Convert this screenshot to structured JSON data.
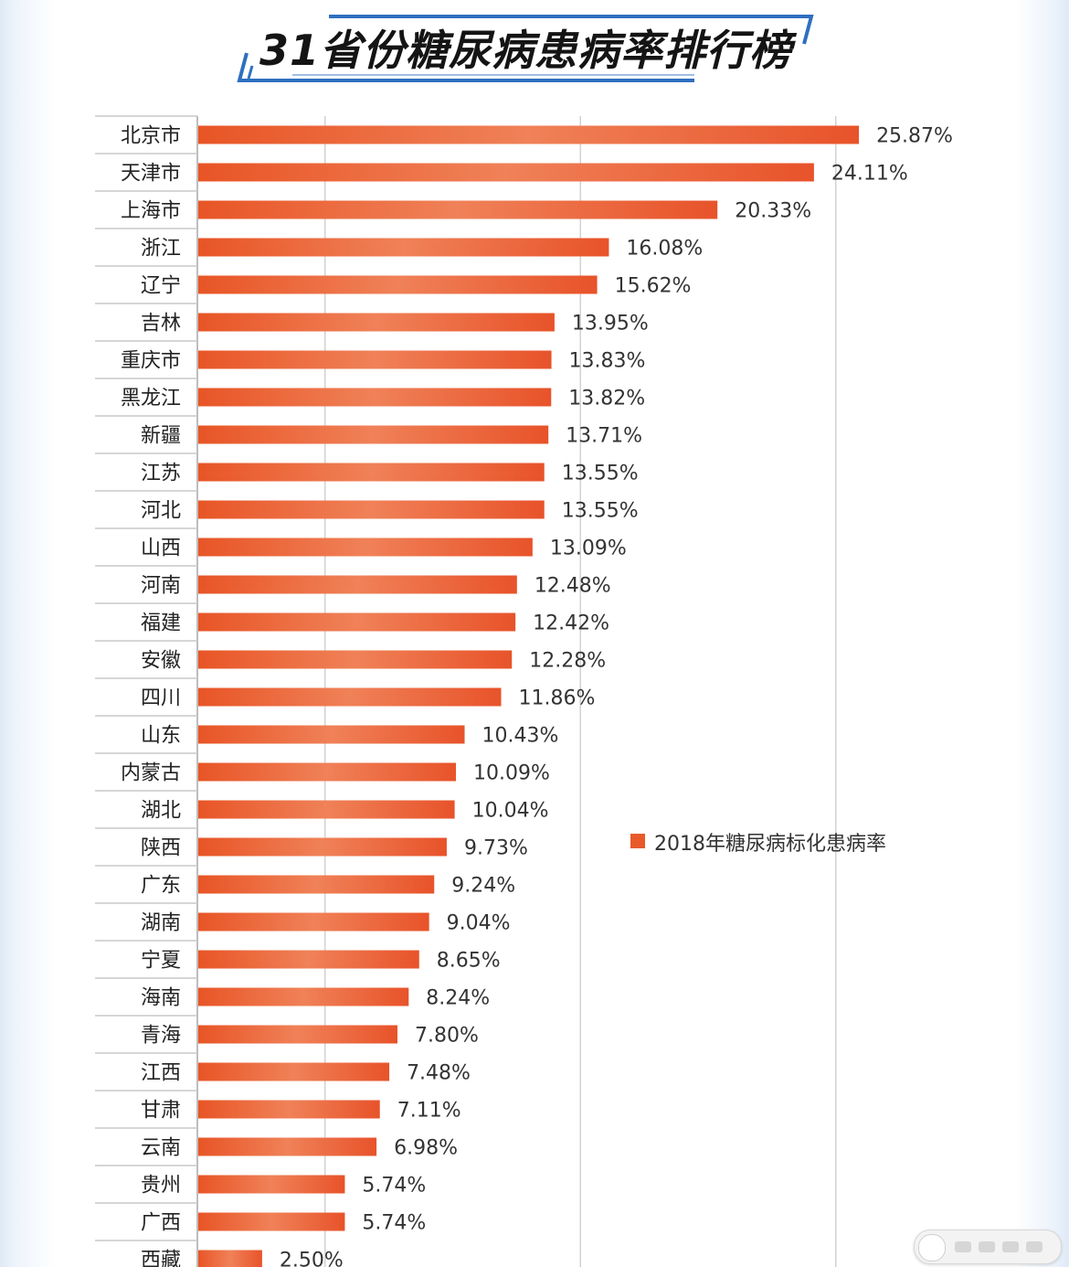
{
  "chart_data": {
    "type": "bar",
    "orientation": "horizontal",
    "title": "31省份糖尿病患病率排行榜",
    "categories": [
      "北京市",
      "天津市",
      "上海市",
      "浙江",
      "辽宁",
      "吉林",
      "重庆市",
      "黑龙江",
      "新疆",
      "江苏",
      "河北",
      "山西",
      "河南",
      "福建",
      "安徽",
      "四川",
      "山东",
      "内蒙古",
      "湖北",
      "陕西",
      "广东",
      "湖南",
      "宁夏",
      "海南",
      "青海",
      "江西",
      "甘肃",
      "云南",
      "贵州",
      "广西",
      "西藏"
    ],
    "series": [
      {
        "name": "2018年糖尿病标化患病率",
        "values": [
          25.87,
          24.11,
          20.33,
          16.08,
          15.62,
          13.95,
          13.83,
          13.82,
          13.71,
          13.55,
          13.55,
          13.09,
          12.48,
          12.42,
          12.28,
          11.86,
          10.43,
          10.09,
          10.04,
          9.73,
          9.24,
          9.04,
          8.65,
          8.24,
          7.8,
          7.48,
          7.11,
          6.98,
          5.74,
          5.74,
          2.5
        ],
        "labels": [
          "25.87%",
          "24.11%",
          "20.33%",
          "16.08%",
          "15.62%",
          "13.95%",
          "13.83%",
          "13.82%",
          "13.71%",
          "13.55%",
          "13.55%",
          "13.09%",
          "12.48%",
          "12.42%",
          "12.28%",
          "11.86%",
          "10.43%",
          "10.09%",
          "10.04%",
          "9.73%",
          "9.24%",
          "9.04%",
          "8.65%",
          "8.24%",
          "7.80%",
          "7.48%",
          "7.11%",
          "6.98%",
          "5.74%",
          "5.74%",
          "2.50%"
        ]
      }
    ],
    "xlim": [
      0,
      30
    ],
    "grid": true,
    "legend": "right-middle",
    "colors": {
      "bar": "#e95a2b",
      "bar_highlight": "#f07a52",
      "legend_marker": "#e95a2b",
      "title_accent": "#2f6fc0",
      "grid": "#d2d2d2"
    }
  }
}
